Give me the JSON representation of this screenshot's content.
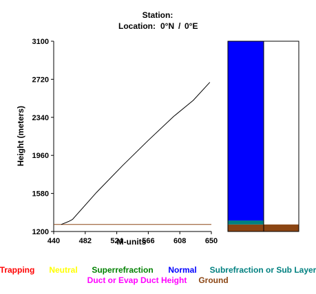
{
  "header": {
    "station_label": "Station:",
    "location_label": "Location:",
    "latitude": "0°N",
    "longitude": "0°E"
  },
  "chart_data": {
    "type": "line",
    "xlabel": "M-units",
    "ylabel": "Height (meters)",
    "xlim": [
      440,
      650
    ],
    "ylim": [
      1200,
      3100
    ],
    "x_ticks": [
      440,
      482,
      524,
      566,
      608,
      650
    ],
    "y_ticks": [
      1200,
      1580,
      1960,
      2340,
      2720,
      3100
    ],
    "series": [
      {
        "color": "#000000",
        "x": [
          450,
          460,
          465,
          497,
          532,
          566,
          600,
          626,
          648
        ],
        "y": [
          1270,
          1300,
          1320,
          1590,
          1860,
          2110,
          2350,
          2510,
          2690
        ]
      }
    ],
    "ground_line": {
      "height": 1270,
      "color": "#8B4513"
    },
    "refraction_column": {
      "ymin": 1200,
      "ymax": 3100,
      "segments": [
        {
          "from": 1200,
          "to": 1270,
          "color": "#8B4513",
          "name": "Ground"
        },
        {
          "from": 1270,
          "to": 1310,
          "color": "#008080",
          "name": "Subrefraction or Sub Layer"
        },
        {
          "from": 1310,
          "to": 3100,
          "color": "#0000FF",
          "name": "Normal"
        }
      ],
      "right_segments": [
        {
          "from": 1200,
          "to": 1270,
          "color": "#8B4513",
          "name": "Ground"
        }
      ]
    }
  },
  "legend": [
    {
      "label": "Trapping",
      "color": "#FF0000"
    },
    {
      "label": "Neutral",
      "color": "#FFFF00"
    },
    {
      "label": "Superrefraction",
      "color": "#008000"
    },
    {
      "label": "Normal",
      "color": "#0000FF"
    },
    {
      "label": "Subrefraction or Sub Layer",
      "color": "#008080"
    },
    {
      "label": "Duct or Evap Duct Height",
      "color": "#FF00FF"
    },
    {
      "label": "Ground",
      "color": "#8B4513"
    }
  ]
}
